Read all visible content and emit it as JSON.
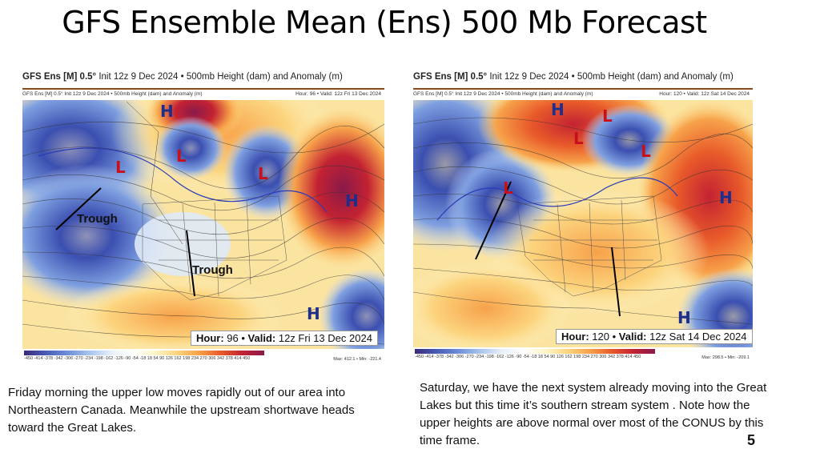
{
  "title": "GFS Ensemble Mean (Ens) 500 Mb Forecast",
  "colors": {
    "low": "#c6101b",
    "high": "#1d2f8a",
    "anomaly_warm": "#e85a2a",
    "anomaly_cold": "#4a5bb5"
  },
  "left_map": {
    "header_model": "GFS Ens [M] 0.5°",
    "header_rest": "Init 12z 9 Dec 2024 • 500mb Height (dam) and Anomaly (m)",
    "sub_left": "GFS Ens [M] 0.5° Init 12z 9 Dec 2024 • 500mb Height (dam) and Anomaly (m)",
    "sub_right": "Hour: 96 • Valid: 12z Fri 13 Dec 2024",
    "hour_label": "Hour:",
    "hour_value": "96",
    "valid_label": "Valid:",
    "valid_value": "12z Fri 13 Dec 2024",
    "trough_labels": [
      "Trough",
      "Trough"
    ],
    "colorbar_ticks": "-450 -414 -378 -342 -306 -270 -234 -198 -162 -126 -90 -54 -18 18 54 90 126 162 198 234 270 306 342 378 414 450",
    "max_min": "Max: 412.1 • Min: -221.4"
  },
  "right_map": {
    "header_model": "GFS Ens [M] 0.5°",
    "header_rest": "Init 12z 9 Dec 2024 • 500mb Height (dam) and Anomaly (m)",
    "sub_left": "GFS Ens [M] 0.5° Init 12z 9 Dec 2024 • 500mb Height (dam) and Anomaly (m)",
    "sub_right": "Hour: 120 • Valid: 12z Sat 14 Dec 2024",
    "hour_label": "Hour:",
    "hour_value": "120",
    "valid_label": "Valid:",
    "valid_value": "12z Sat 14 Dec 2024",
    "colorbar_ticks": "-450 -414 -378 -342 -306 -270 -234 -198 -162 -126 -90 -54 -18 18 54 90 126 162 198 234 270 306 342 378 414 450",
    "max_min": "Max: 298.5 • Min: -209.1"
  },
  "pressure_labels": {
    "high": "H",
    "low": "L"
  },
  "caption_left": "Friday morning the upper low moves rapidly out of our area into Northeastern Canada.  Meanwhile the upstream shortwave heads toward the Great Lakes.",
  "caption_right": "Saturday, we have the next system already moving into the Great Lakes but this time it’s southern stream system .  Note how the upper heights are above normal over most of the CONUS by this time frame.",
  "page_number": "5"
}
